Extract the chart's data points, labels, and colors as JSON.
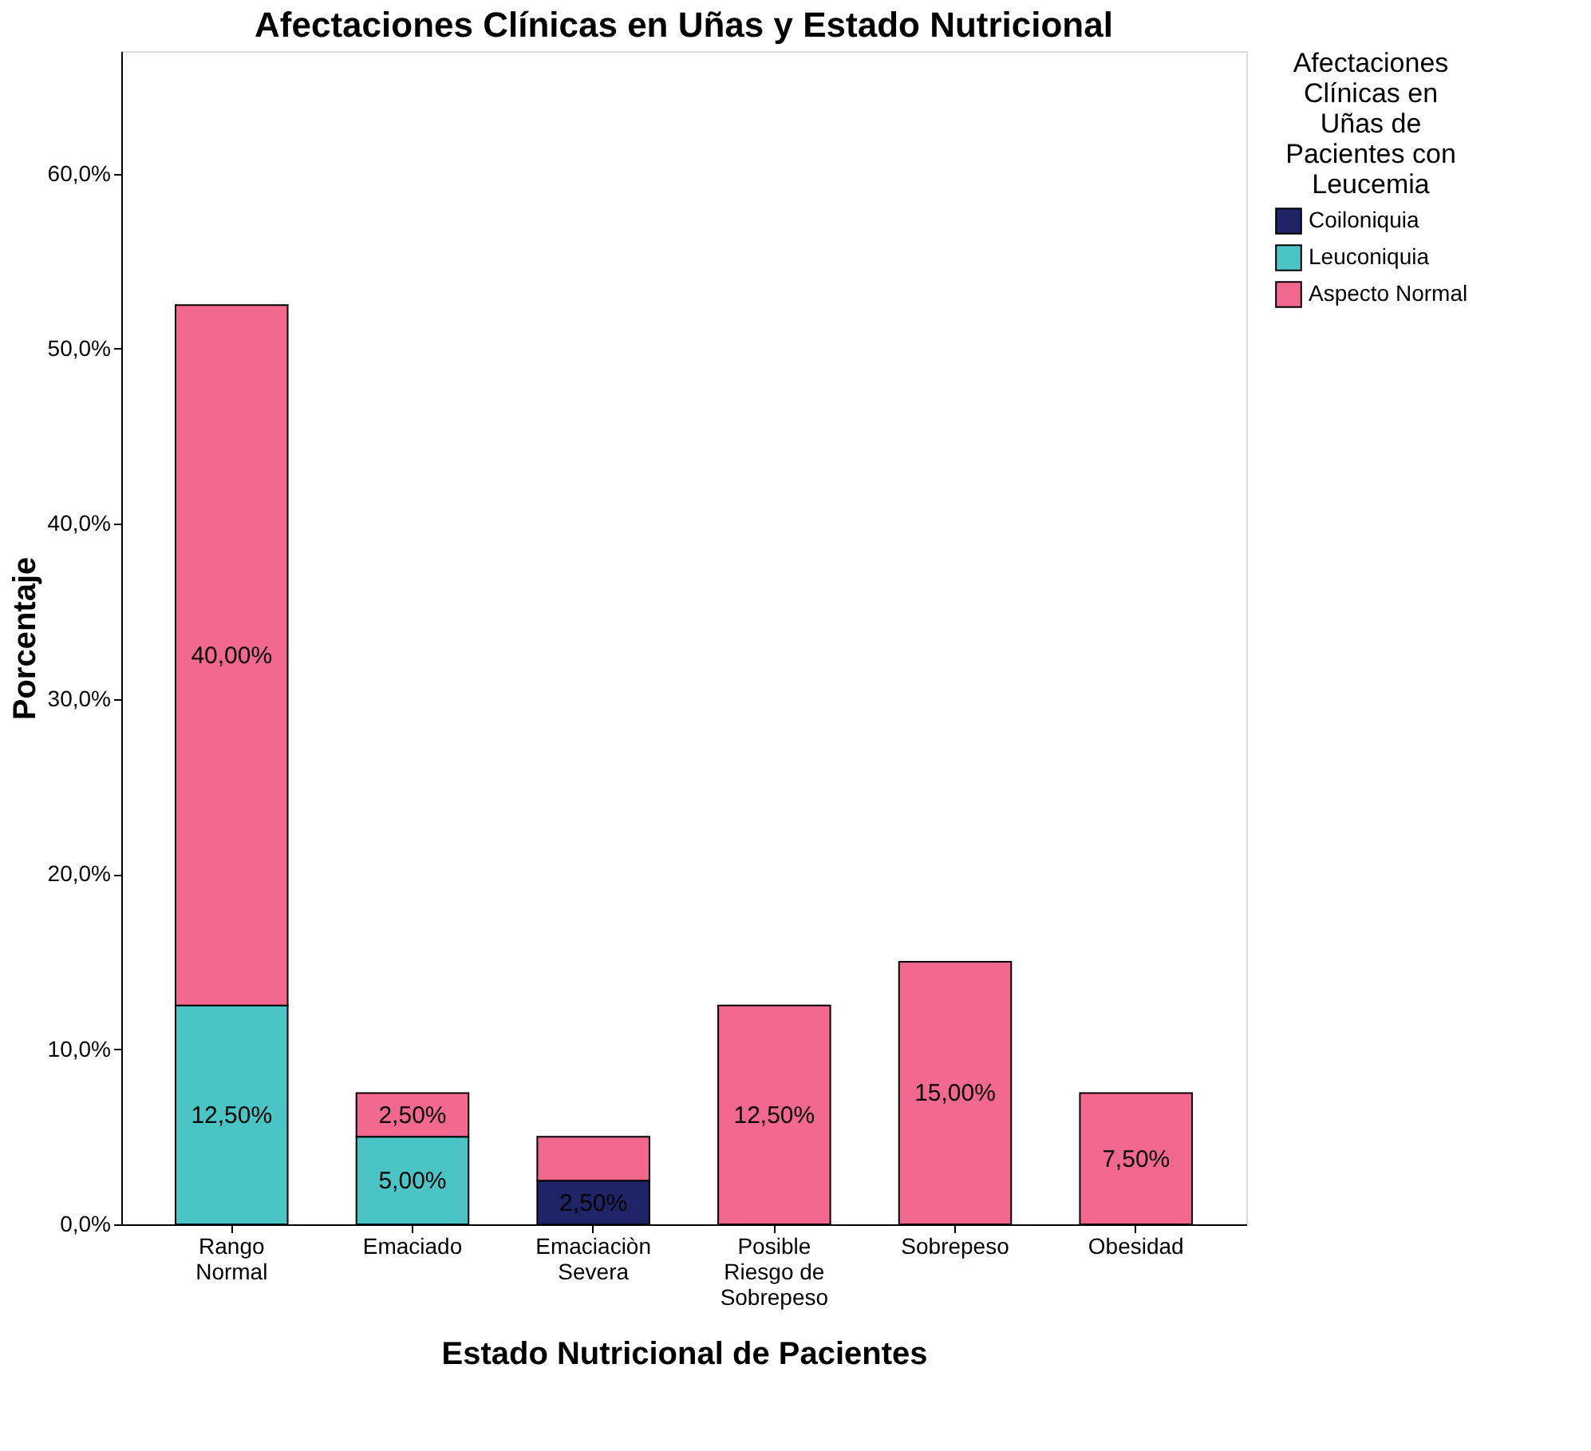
{
  "chart_data": {
    "type": "bar",
    "stacked": true,
    "title": "Afectaciones Clínicas en Uñas y Estado Nutricional",
    "xlabel": "Estado Nutricional de Pacientes",
    "ylabel": "Porcentaje",
    "legend_title": "Afectaciones Clínicas en Uñas de Pacientes con Leucemia",
    "categories": [
      "Rango Normal",
      "Emaciado",
      "Emaciaciòn Severa",
      "Posible Riesgo de Sobrepeso",
      "Sobrepeso",
      "Obesidad"
    ],
    "series": [
      {
        "name": "Coiloniquia",
        "color": "#1f2466",
        "values": [
          null,
          null,
          2.5,
          null,
          null,
          null
        ],
        "value_labels": [
          null,
          null,
          "2,50%",
          null,
          null,
          null
        ]
      },
      {
        "name": "Leuconiquia",
        "color": "#4bc4c6",
        "values": [
          12.5,
          5,
          null,
          null,
          null,
          null
        ],
        "value_labels": [
          "12,50%",
          "5,00%",
          null,
          null,
          null,
          null
        ]
      },
      {
        "name": "Aspecto Normal",
        "color": "#f2688e",
        "values": [
          40,
          2.5,
          2.5,
          12.5,
          15,
          7.5
        ],
        "value_labels": [
          "40,00%",
          "2,50%",
          null,
          "12,50%",
          "15,00%",
          "7,50%"
        ]
      }
    ],
    "ylim": [
      0,
      67
    ],
    "yticks": [
      {
        "value": 0,
        "label": "0,0%"
      },
      {
        "value": 10,
        "label": "10,0%"
      },
      {
        "value": 20,
        "label": "20,0%"
      },
      {
        "value": 30,
        "label": "30,0%"
      },
      {
        "value": 40,
        "label": "40,0%"
      },
      {
        "value": 50,
        "label": "50,0%"
      },
      {
        "value": 60,
        "label": "60,0%"
      }
    ],
    "grid": false,
    "legend": "top right"
  }
}
